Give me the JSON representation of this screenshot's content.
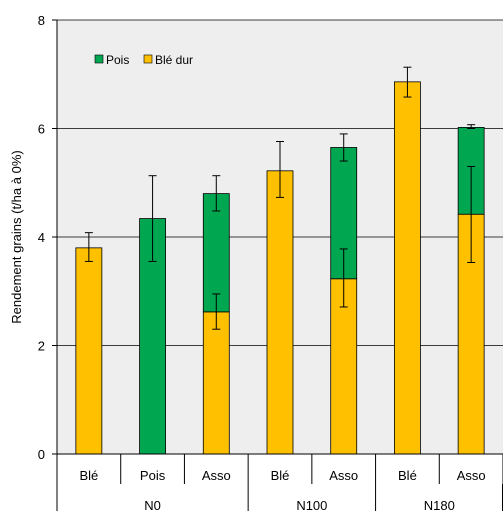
{
  "chart_data": {
    "type": "bar",
    "stacked": true,
    "categories": [
      "Blé",
      "Pois",
      "Asso",
      "Blé",
      "Asso",
      "Blé",
      "Asso"
    ],
    "groups": [
      {
        "label": "N0",
        "categories": [
          "Blé",
          "Pois",
          "Asso"
        ]
      },
      {
        "label": "N100",
        "categories": [
          "Blé",
          "Asso"
        ]
      },
      {
        "label": "N180",
        "categories": [
          "Blé",
          "Asso"
        ]
      }
    ],
    "series": [
      {
        "name": "Blé dur",
        "color": "#ffc000",
        "values": [
          3.8,
          0,
          2.62,
          5.22,
          3.23,
          6.86,
          4.42
        ],
        "error_low": [
          3.55,
          null,
          2.3,
          4.73,
          2.71,
          6.58,
          3.53
        ],
        "error_high": [
          4.08,
          null,
          2.95,
          5.76,
          3.78,
          7.13,
          5.3
        ]
      },
      {
        "name": "Pois",
        "color": "#00a650",
        "values": [
          0,
          4.34,
          2.18,
          0,
          2.42,
          0,
          1.6
        ],
        "error_low": [
          null,
          3.55,
          4.48,
          null,
          5.4,
          null,
          6.0
        ],
        "error_high": [
          null,
          5.13,
          5.13,
          null,
          5.9,
          null,
          6.07
        ]
      }
    ],
    "ylabel": "Rendement grains (t/ha à 0%)",
    "ylim": [
      0,
      8
    ],
    "yticks": [
      "0",
      "2",
      "4",
      "6",
      "8"
    ],
    "grid": true,
    "plot_background": "#eeeeee",
    "legend_position": "top-left"
  }
}
